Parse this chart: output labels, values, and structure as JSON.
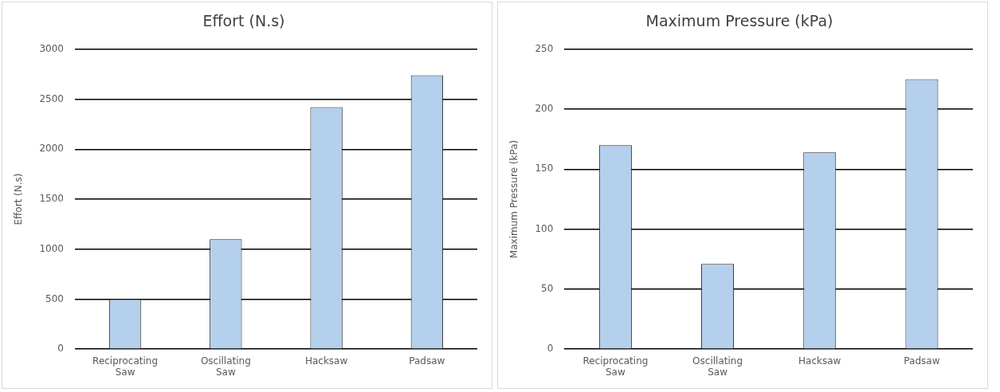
{
  "chart_data": [
    {
      "type": "bar",
      "title": "Effort (N.s)",
      "ylabel": "Effort (N.s)",
      "categories": [
        "Reciprocating Saw",
        "Oscillating Saw",
        "Hacksaw",
        "Padsaw"
      ],
      "values": [
        500,
        1100,
        2420,
        2740
      ],
      "color": "#b4d0ec",
      "ylim": [
        0,
        3000
      ],
      "yticks": [
        0,
        500,
        1000,
        1500,
        2000,
        2500,
        3000
      ],
      "grid": "y",
      "legend": false
    },
    {
      "type": "bar",
      "title": "Maximum Pressure (kPa)",
      "ylabel": "Maximum Pressure (kPa)",
      "categories": [
        "Reciprocating Saw",
        "Oscillating Saw",
        "Hacksaw",
        "Padsaw"
      ],
      "values": [
        170,
        71,
        164,
        225
      ],
      "color": "#b4d0ec",
      "ylim": [
        0,
        250
      ],
      "yticks": [
        0,
        50,
        100,
        150,
        200,
        250
      ],
      "grid": "y",
      "legend": false
    }
  ]
}
